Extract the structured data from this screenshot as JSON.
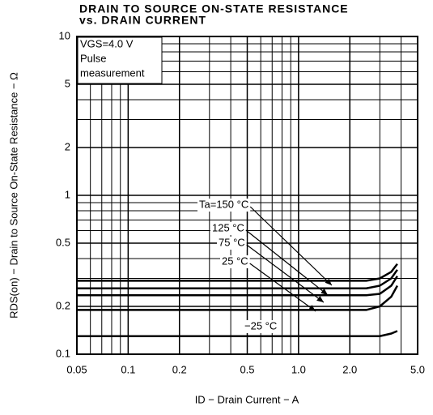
{
  "chart_data": {
    "type": "line",
    "title": [
      "DRAIN TO SOURCE ON-STATE RESISTANCE",
      "vs. DRAIN CURRENT"
    ],
    "x_label": "ID − Drain Current − A",
    "y_label": "RDS(on) − Drain to Source On-State Resistance − Ω",
    "annotation": [
      "VGS=4.0 V",
      "Pulse",
      "measurement"
    ],
    "x": [
      0.05,
      0.1,
      0.5,
      1,
      2,
      2.5,
      3,
      3.5,
      3.8
    ],
    "series": [
      {
        "name": "Ta=150 °C",
        "color": "#000000",
        "values": [
          0.29,
          0.29,
          0.29,
          0.29,
          0.29,
          0.29,
          0.3,
          0.33,
          0.37
        ]
      },
      {
        "name": "125 °C",
        "color": "#000000",
        "values": [
          0.26,
          0.26,
          0.26,
          0.26,
          0.26,
          0.26,
          0.27,
          0.3,
          0.34
        ]
      },
      {
        "name": "75 °C",
        "color": "#000000",
        "values": [
          0.235,
          0.235,
          0.235,
          0.235,
          0.235,
          0.235,
          0.24,
          0.27,
          0.31
        ]
      },
      {
        "name": "25 °C",
        "color": "#000000",
        "values": [
          0.19,
          0.19,
          0.19,
          0.19,
          0.19,
          0.19,
          0.2,
          0.23,
          0.27
        ]
      },
      {
        "name": "−25 °C",
        "color": "#000000",
        "values": [
          0.13,
          0.13,
          0.13,
          0.13,
          0.13,
          0.13,
          0.13,
          0.135,
          0.14
        ]
      }
    ],
    "xlim": [
      0.05,
      5
    ],
    "ylim": [
      0.1,
      10
    ],
    "xticks": [
      0.05,
      0.1,
      0.2,
      0.5,
      {
        "value": 1,
        "label": "1.0"
      },
      {
        "value": 2,
        "label": "2.0"
      },
      {
        "value": 5,
        "label": "5.0"
      }
    ],
    "yticks": [
      0.1,
      0.2,
      0.5,
      1,
      2,
      5,
      10
    ],
    "log_x": true,
    "log_y": true,
    "grid": true
  }
}
